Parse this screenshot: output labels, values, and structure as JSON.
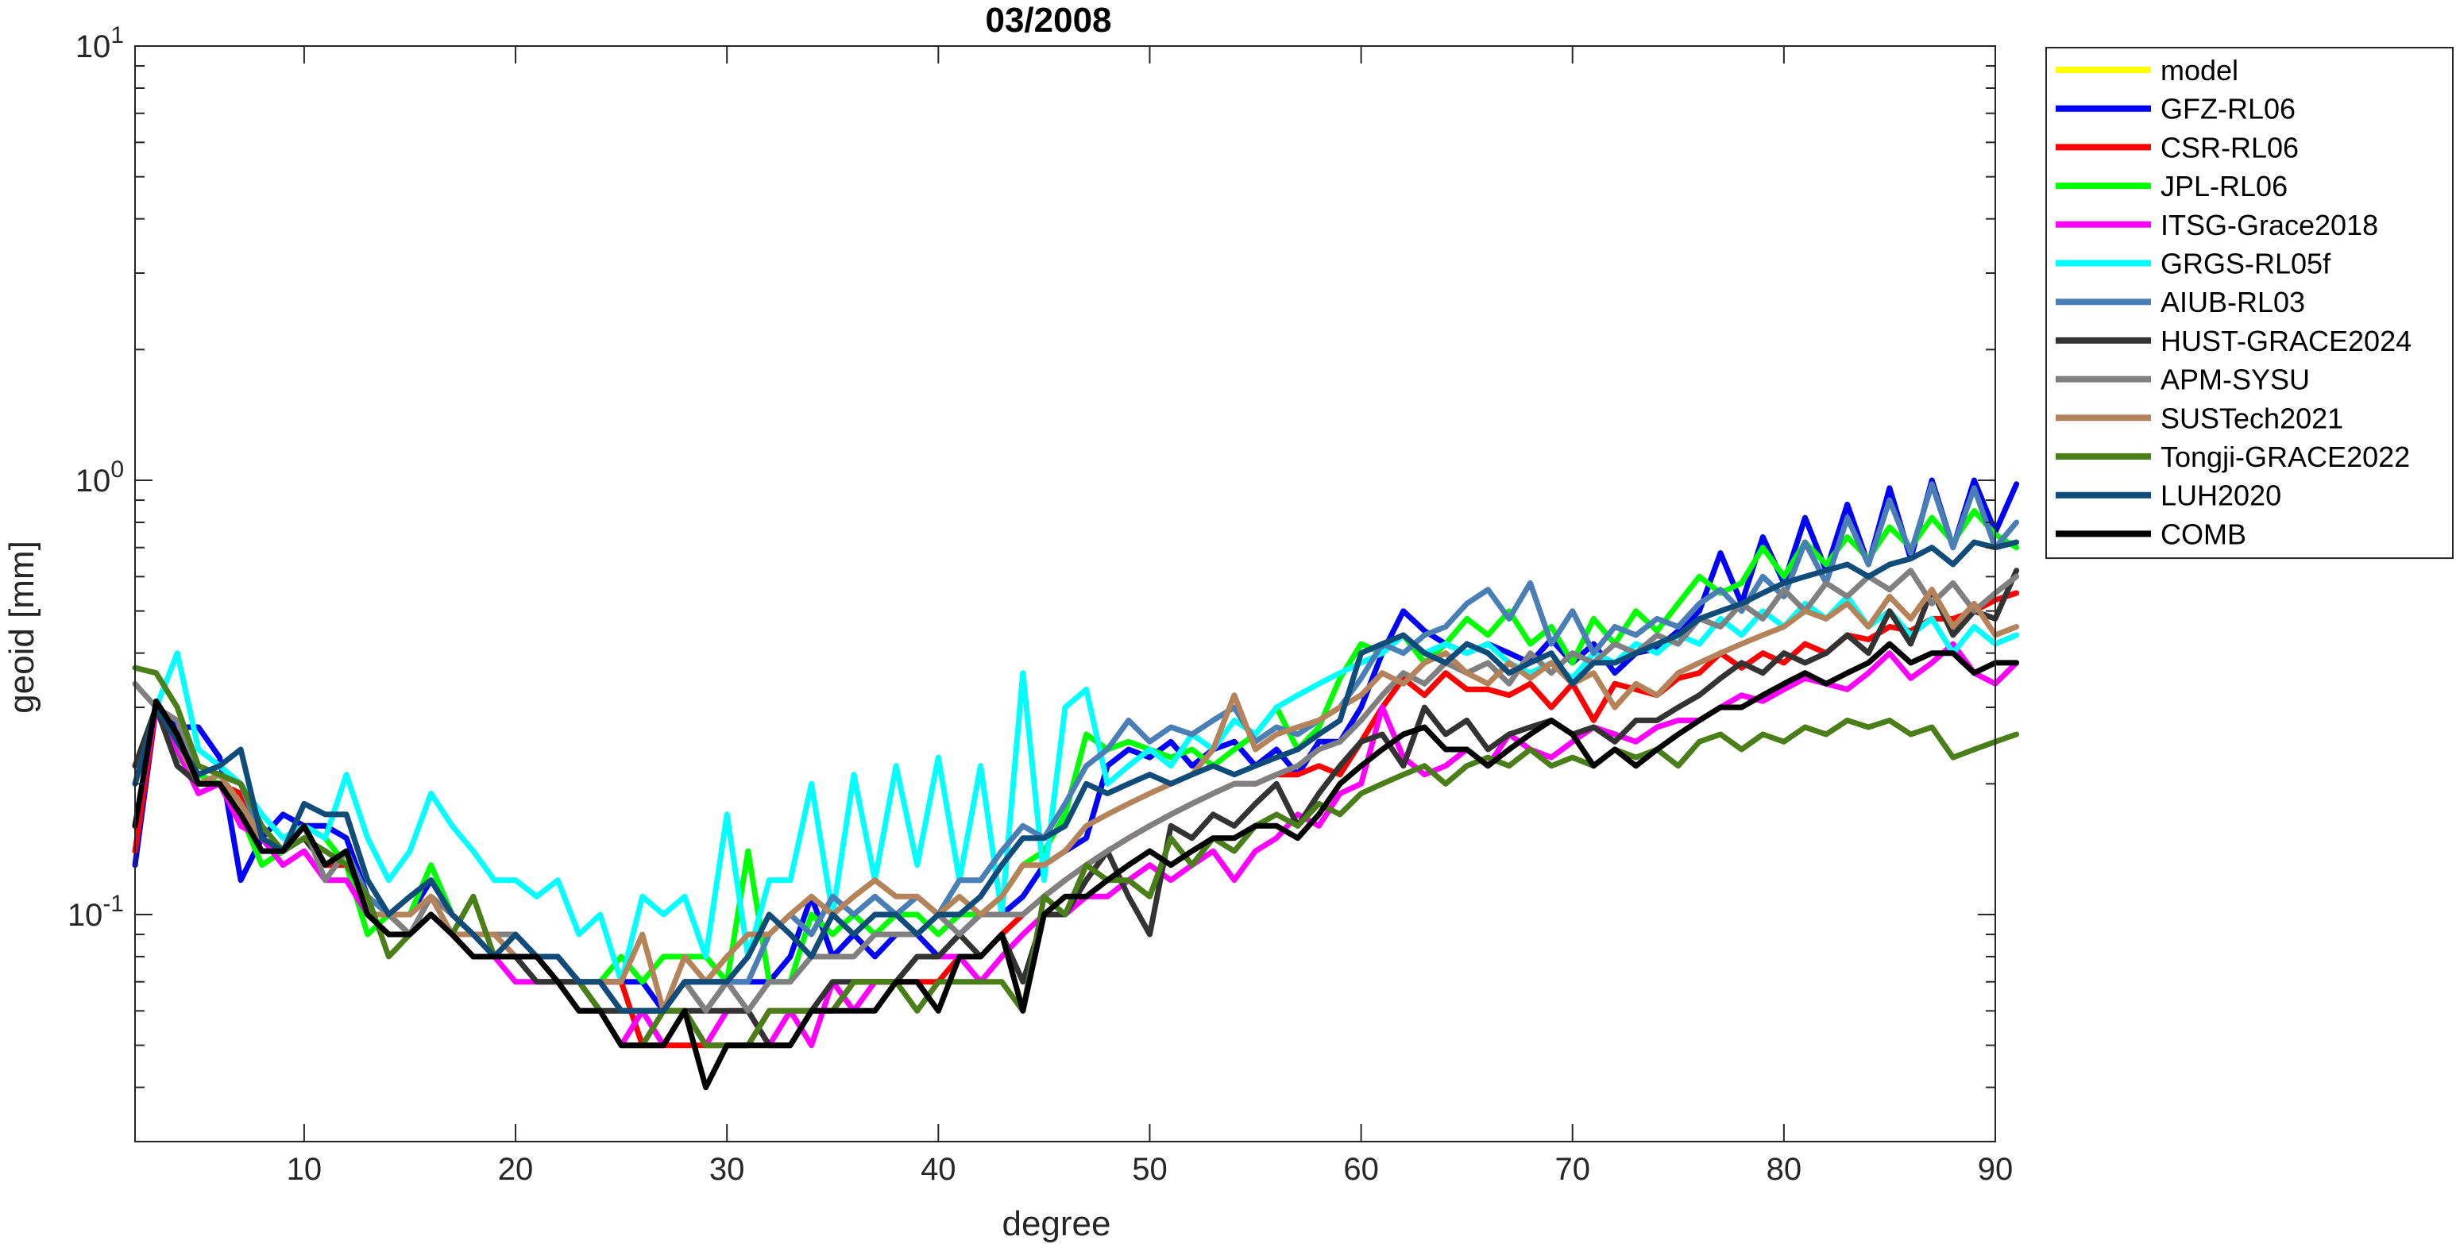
{
  "chart_data": {
    "type": "line",
    "title": "03/2008",
    "xlabel": "degree",
    "ylabel": "geoid [mm]",
    "xlim": [
      2,
      90
    ],
    "ylim": [
      0.03,
      10
    ],
    "yscale": "log",
    "grid": false,
    "legend_position": "outside-right",
    "x_ticks": [
      10,
      20,
      30,
      40,
      50,
      60,
      70,
      80,
      90
    ],
    "x_tick_labels": [
      "10",
      "20",
      "30",
      "40",
      "50",
      "60",
      "70",
      "80",
      "90"
    ],
    "y_ticks": [
      {
        "value": 0.1,
        "base": "10",
        "exp": "-1"
      },
      {
        "value": 1,
        "base": "10",
        "exp": "0"
      },
      {
        "value": 10,
        "base": "10",
        "exp": "1"
      }
    ],
    "x_degree_range": [
      2,
      90
    ],
    "series": [
      {
        "name": "model",
        "color": "#ffff00",
        "values": []
      },
      {
        "name": "GFZ-RL06",
        "color": "#0000ff",
        "values": [
          0.13,
          0.3,
          0.27,
          0.27,
          0.23,
          0.12,
          0.15,
          0.17,
          0.16,
          0.16,
          0.15,
          0.11,
          0.1,
          0.1,
          0.12,
          0.1,
          0.09,
          0.09,
          0.09,
          0.08,
          0.08,
          0.07,
          0.07,
          0.07,
          0.07,
          0.06,
          0.07,
          0.07,
          0.07,
          0.07,
          0.07,
          0.08,
          0.11,
          0.08,
          0.09,
          0.08,
          0.09,
          0.09,
          0.08,
          0.09,
          0.1,
          0.1,
          0.11,
          0.13,
          0.14,
          0.15,
          0.22,
          0.24,
          0.23,
          0.25,
          0.22,
          0.24,
          0.25,
          0.22,
          0.24,
          0.21,
          0.25,
          0.25,
          0.3,
          0.4,
          0.5,
          0.45,
          0.42,
          0.4,
          0.42,
          0.4,
          0.38,
          0.43,
          0.38,
          0.42,
          0.36,
          0.4,
          0.41,
          0.45,
          0.5,
          0.68,
          0.52,
          0.74,
          0.58,
          0.82,
          0.62,
          0.88,
          0.64,
          0.96,
          0.66,
          1.0,
          0.7,
          1.0,
          0.76,
          0.98
        ]
      },
      {
        "name": "CSR-RL06",
        "color": "#ff0000",
        "values": [
          0.14,
          0.3,
          0.25,
          0.2,
          0.2,
          0.19,
          0.15,
          0.14,
          0.15,
          0.13,
          0.13,
          0.11,
          0.1,
          0.09,
          0.1,
          0.09,
          0.08,
          0.08,
          0.08,
          0.08,
          0.07,
          0.07,
          0.07,
          0.07,
          0.05,
          0.05,
          0.05,
          0.05,
          0.05,
          0.05,
          0.06,
          0.06,
          0.06,
          0.06,
          0.07,
          0.07,
          0.07,
          0.07,
          0.07,
          0.08,
          0.08,
          0.09,
          0.1,
          0.11,
          0.12,
          0.13,
          0.14,
          0.15,
          0.16,
          0.17,
          0.18,
          0.19,
          0.2,
          0.2,
          0.21,
          0.21,
          0.22,
          0.21,
          0.25,
          0.3,
          0.35,
          0.32,
          0.36,
          0.33,
          0.33,
          0.32,
          0.34,
          0.3,
          0.34,
          0.28,
          0.34,
          0.33,
          0.32,
          0.35,
          0.36,
          0.4,
          0.37,
          0.4,
          0.38,
          0.42,
          0.4,
          0.44,
          0.43,
          0.46,
          0.45,
          0.48,
          0.48,
          0.5,
          0.53,
          0.55
        ]
      },
      {
        "name": "JPL-RL06",
        "color": "#00ff00",
        "values": [
          0.22,
          0.3,
          0.23,
          0.21,
          0.2,
          0.17,
          0.13,
          0.14,
          0.16,
          0.15,
          0.13,
          0.09,
          0.1,
          0.1,
          0.13,
          0.1,
          0.09,
          0.08,
          0.08,
          0.08,
          0.08,
          0.07,
          0.07,
          0.08,
          0.07,
          0.08,
          0.08,
          0.08,
          0.07,
          0.14,
          0.07,
          0.07,
          0.1,
          0.09,
          0.1,
          0.09,
          0.1,
          0.1,
          0.09,
          0.1,
          0.1,
          0.11,
          0.13,
          0.14,
          0.17,
          0.26,
          0.24,
          0.25,
          0.24,
          0.23,
          0.24,
          0.22,
          0.24,
          0.26,
          0.3,
          0.24,
          0.27,
          0.35,
          0.42,
          0.4,
          0.44,
          0.38,
          0.42,
          0.48,
          0.44,
          0.5,
          0.42,
          0.46,
          0.38,
          0.48,
          0.42,
          0.5,
          0.45,
          0.52,
          0.6,
          0.55,
          0.58,
          0.7,
          0.6,
          0.72,
          0.64,
          0.74,
          0.66,
          0.78,
          0.7,
          0.82,
          0.72,
          0.85,
          0.75,
          0.7
        ]
      },
      {
        "name": "ITSG-Grace2018",
        "color": "#ff00ff",
        "values": [
          0.16,
          0.3,
          0.24,
          0.19,
          0.2,
          0.16,
          0.15,
          0.13,
          0.14,
          0.12,
          0.12,
          0.1,
          0.09,
          0.09,
          0.1,
          0.09,
          0.08,
          0.08,
          0.07,
          0.07,
          0.07,
          0.06,
          0.06,
          0.05,
          0.06,
          0.05,
          0.06,
          0.05,
          0.06,
          0.06,
          0.05,
          0.06,
          0.05,
          0.07,
          0.06,
          0.07,
          0.07,
          0.08,
          0.08,
          0.08,
          0.07,
          0.08,
          0.09,
          0.1,
          0.1,
          0.11,
          0.11,
          0.12,
          0.13,
          0.12,
          0.13,
          0.14,
          0.12,
          0.14,
          0.15,
          0.17,
          0.16,
          0.19,
          0.2,
          0.3,
          0.23,
          0.21,
          0.22,
          0.24,
          0.22,
          0.26,
          0.24,
          0.23,
          0.25,
          0.27,
          0.26,
          0.25,
          0.27,
          0.28,
          0.28,
          0.3,
          0.32,
          0.31,
          0.33,
          0.35,
          0.34,
          0.33,
          0.36,
          0.4,
          0.35,
          0.38,
          0.42,
          0.36,
          0.34,
          0.38
        ]
      },
      {
        "name": "GRGS-RL05f",
        "color": "#00ffff",
        "values": [
          0.2,
          0.3,
          0.4,
          0.24,
          0.22,
          0.2,
          0.17,
          0.15,
          0.16,
          0.15,
          0.21,
          0.15,
          0.12,
          0.14,
          0.19,
          0.16,
          0.14,
          0.12,
          0.12,
          0.11,
          0.12,
          0.09,
          0.1,
          0.07,
          0.11,
          0.1,
          0.11,
          0.08,
          0.17,
          0.08,
          0.12,
          0.12,
          0.2,
          0.1,
          0.21,
          0.12,
          0.22,
          0.13,
          0.23,
          0.12,
          0.22,
          0.1,
          0.36,
          0.12,
          0.3,
          0.33,
          0.2,
          0.22,
          0.24,
          0.22,
          0.26,
          0.24,
          0.28,
          0.26,
          0.3,
          0.32,
          0.34,
          0.36,
          0.38,
          0.4,
          0.44,
          0.4,
          0.42,
          0.4,
          0.42,
          0.38,
          0.36,
          0.38,
          0.35,
          0.4,
          0.38,
          0.42,
          0.4,
          0.44,
          0.42,
          0.48,
          0.44,
          0.5,
          0.46,
          0.52,
          0.48,
          0.54,
          0.46,
          0.5,
          0.44,
          0.48,
          0.4,
          0.46,
          0.42,
          0.44
        ]
      },
      {
        "name": "AIUB-RL03",
        "color": "#4a7fb5",
        "values": [
          0.2,
          0.3,
          0.26,
          0.22,
          0.21,
          0.2,
          0.15,
          0.14,
          0.16,
          0.13,
          0.14,
          0.11,
          0.1,
          0.1,
          0.11,
          0.09,
          0.09,
          0.08,
          0.08,
          0.08,
          0.07,
          0.07,
          0.06,
          0.06,
          0.06,
          0.06,
          0.07,
          0.06,
          0.07,
          0.07,
          0.09,
          0.1,
          0.09,
          0.11,
          0.1,
          0.11,
          0.1,
          0.11,
          0.1,
          0.12,
          0.12,
          0.14,
          0.16,
          0.15,
          0.18,
          0.22,
          0.24,
          0.28,
          0.25,
          0.27,
          0.26,
          0.28,
          0.3,
          0.25,
          0.27,
          0.26,
          0.28,
          0.3,
          0.35,
          0.42,
          0.4,
          0.44,
          0.46,
          0.52,
          0.56,
          0.48,
          0.58,
          0.42,
          0.5,
          0.4,
          0.46,
          0.44,
          0.48,
          0.46,
          0.52,
          0.56,
          0.5,
          0.6,
          0.54,
          0.72,
          0.58,
          0.82,
          0.64,
          0.9,
          0.68,
          0.98,
          0.7,
          0.96,
          0.7,
          0.8
        ]
      },
      {
        "name": "HUST-GRACE2024",
        "color": "#333333",
        "values": [
          0.22,
          0.3,
          0.22,
          0.2,
          0.2,
          0.17,
          0.15,
          0.14,
          0.15,
          0.13,
          0.14,
          0.1,
          0.09,
          0.09,
          0.1,
          0.09,
          0.08,
          0.08,
          0.08,
          0.07,
          0.07,
          0.07,
          0.06,
          0.06,
          0.06,
          0.06,
          0.06,
          0.06,
          0.06,
          0.06,
          0.05,
          0.05,
          0.06,
          0.07,
          0.07,
          0.07,
          0.07,
          0.08,
          0.08,
          0.09,
          0.08,
          0.09,
          0.07,
          0.1,
          0.1,
          0.12,
          0.14,
          0.11,
          0.09,
          0.16,
          0.15,
          0.17,
          0.16,
          0.18,
          0.2,
          0.16,
          0.19,
          0.22,
          0.25,
          0.26,
          0.22,
          0.3,
          0.26,
          0.28,
          0.24,
          0.26,
          0.27,
          0.28,
          0.26,
          0.27,
          0.25,
          0.28,
          0.28,
          0.3,
          0.32,
          0.35,
          0.38,
          0.36,
          0.4,
          0.38,
          0.4,
          0.44,
          0.4,
          0.5,
          0.42,
          0.56,
          0.44,
          0.5,
          0.48,
          0.62
        ]
      },
      {
        "name": "APM-SYSU",
        "color": "#808080",
        "values": [
          0.34,
          0.3,
          0.28,
          0.2,
          0.2,
          0.17,
          0.15,
          0.14,
          0.16,
          0.12,
          0.14,
          0.1,
          0.1,
          0.09,
          0.11,
          0.1,
          0.09,
          0.09,
          0.09,
          0.08,
          0.08,
          0.07,
          0.07,
          0.06,
          0.06,
          0.06,
          0.07,
          0.06,
          0.07,
          0.06,
          0.07,
          0.07,
          0.08,
          0.08,
          0.08,
          0.09,
          0.09,
          0.09,
          0.1,
          0.09,
          0.1,
          0.1,
          0.1,
          0.11,
          0.12,
          0.13,
          0.14,
          0.15,
          0.16,
          0.17,
          0.18,
          0.19,
          0.2,
          0.2,
          0.21,
          0.22,
          0.24,
          0.25,
          0.28,
          0.32,
          0.36,
          0.34,
          0.38,
          0.36,
          0.38,
          0.34,
          0.4,
          0.36,
          0.4,
          0.38,
          0.42,
          0.4,
          0.44,
          0.42,
          0.48,
          0.46,
          0.52,
          0.48,
          0.56,
          0.5,
          0.58,
          0.54,
          0.6,
          0.56,
          0.62,
          0.52,
          0.58,
          0.5,
          0.55,
          0.6
        ]
      },
      {
        "name": "SUSTech2021",
        "color": "#b5835a",
        "values": [
          0.2,
          0.3,
          0.25,
          0.2,
          0.21,
          0.18,
          0.15,
          0.14,
          0.16,
          0.13,
          0.14,
          0.1,
          0.1,
          0.1,
          0.11,
          0.09,
          0.09,
          0.09,
          0.08,
          0.08,
          0.08,
          0.07,
          0.07,
          0.07,
          0.09,
          0.06,
          0.08,
          0.07,
          0.08,
          0.09,
          0.09,
          0.1,
          0.11,
          0.1,
          0.11,
          0.12,
          0.11,
          0.11,
          0.1,
          0.11,
          0.1,
          0.11,
          0.13,
          0.13,
          0.14,
          0.16,
          0.17,
          0.18,
          0.19,
          0.2,
          0.21,
          0.24,
          0.32,
          0.24,
          0.26,
          0.27,
          0.28,
          0.3,
          0.32,
          0.36,
          0.34,
          0.38,
          0.4,
          0.36,
          0.34,
          0.38,
          0.35,
          0.38,
          0.34,
          0.36,
          0.3,
          0.34,
          0.32,
          0.36,
          0.38,
          0.4,
          0.42,
          0.44,
          0.46,
          0.5,
          0.48,
          0.52,
          0.46,
          0.54,
          0.48,
          0.56,
          0.46,
          0.52,
          0.44,
          0.46
        ]
      },
      {
        "name": "Tongji-GRACE2022",
        "color": "#4a7e18",
        "values": [
          0.37,
          0.36,
          0.3,
          0.22,
          0.21,
          0.2,
          0.16,
          0.14,
          0.15,
          0.14,
          0.13,
          0.11,
          0.08,
          0.09,
          0.1,
          0.09,
          0.11,
          0.08,
          0.08,
          0.08,
          0.08,
          0.07,
          0.06,
          0.05,
          0.05,
          0.06,
          0.06,
          0.05,
          0.05,
          0.05,
          0.06,
          0.06,
          0.06,
          0.06,
          0.07,
          0.07,
          0.07,
          0.06,
          0.07,
          0.07,
          0.07,
          0.07,
          0.06,
          0.11,
          0.1,
          0.13,
          0.12,
          0.12,
          0.11,
          0.15,
          0.13,
          0.15,
          0.14,
          0.16,
          0.17,
          0.16,
          0.18,
          0.17,
          0.19,
          0.2,
          0.21,
          0.22,
          0.2,
          0.22,
          0.23,
          0.22,
          0.24,
          0.22,
          0.23,
          0.22,
          0.24,
          0.23,
          0.24,
          0.22,
          0.25,
          0.26,
          0.24,
          0.26,
          0.25,
          0.27,
          0.26,
          0.28,
          0.27,
          0.28,
          0.26,
          0.27,
          0.23,
          0.24,
          0.25,
          0.26
        ]
      },
      {
        "name": "LUH2020",
        "color": "#0f4c7a",
        "values": [
          0.2,
          0.3,
          0.25,
          0.21,
          0.22,
          0.24,
          0.15,
          0.14,
          0.18,
          0.17,
          0.17,
          0.12,
          0.1,
          0.11,
          0.12,
          0.1,
          0.09,
          0.08,
          0.09,
          0.08,
          0.08,
          0.07,
          0.07,
          0.06,
          0.06,
          0.06,
          0.07,
          0.07,
          0.07,
          0.08,
          0.1,
          0.09,
          0.08,
          0.1,
          0.09,
          0.1,
          0.1,
          0.09,
          0.1,
          0.1,
          0.11,
          0.13,
          0.15,
          0.15,
          0.16,
          0.2,
          0.19,
          0.2,
          0.21,
          0.2,
          0.21,
          0.22,
          0.21,
          0.22,
          0.23,
          0.24,
          0.26,
          0.28,
          0.4,
          0.42,
          0.44,
          0.4,
          0.38,
          0.42,
          0.4,
          0.36,
          0.38,
          0.4,
          0.34,
          0.38,
          0.38,
          0.4,
          0.42,
          0.44,
          0.48,
          0.5,
          0.52,
          0.55,
          0.58,
          0.6,
          0.62,
          0.64,
          0.6,
          0.64,
          0.66,
          0.7,
          0.64,
          0.72,
          0.7,
          0.72
        ]
      },
      {
        "name": "COMB",
        "color": "#000000",
        "values": [
          0.16,
          0.31,
          0.26,
          0.2,
          0.2,
          0.17,
          0.14,
          0.14,
          0.16,
          0.13,
          0.14,
          0.1,
          0.09,
          0.09,
          0.1,
          0.09,
          0.08,
          0.08,
          0.08,
          0.08,
          0.07,
          0.06,
          0.06,
          0.05,
          0.05,
          0.05,
          0.06,
          0.04,
          0.05,
          0.05,
          0.05,
          0.05,
          0.06,
          0.06,
          0.06,
          0.06,
          0.07,
          0.07,
          0.06,
          0.08,
          0.08,
          0.09,
          0.06,
          0.1,
          0.11,
          0.11,
          0.12,
          0.13,
          0.14,
          0.13,
          0.14,
          0.15,
          0.15,
          0.16,
          0.16,
          0.15,
          0.17,
          0.2,
          0.22,
          0.24,
          0.26,
          0.27,
          0.24,
          0.24,
          0.22,
          0.24,
          0.26,
          0.28,
          0.26,
          0.22,
          0.24,
          0.22,
          0.24,
          0.26,
          0.28,
          0.3,
          0.3,
          0.32,
          0.34,
          0.36,
          0.34,
          0.36,
          0.38,
          0.42,
          0.38,
          0.4,
          0.4,
          0.36,
          0.38,
          0.38
        ]
      }
    ]
  }
}
